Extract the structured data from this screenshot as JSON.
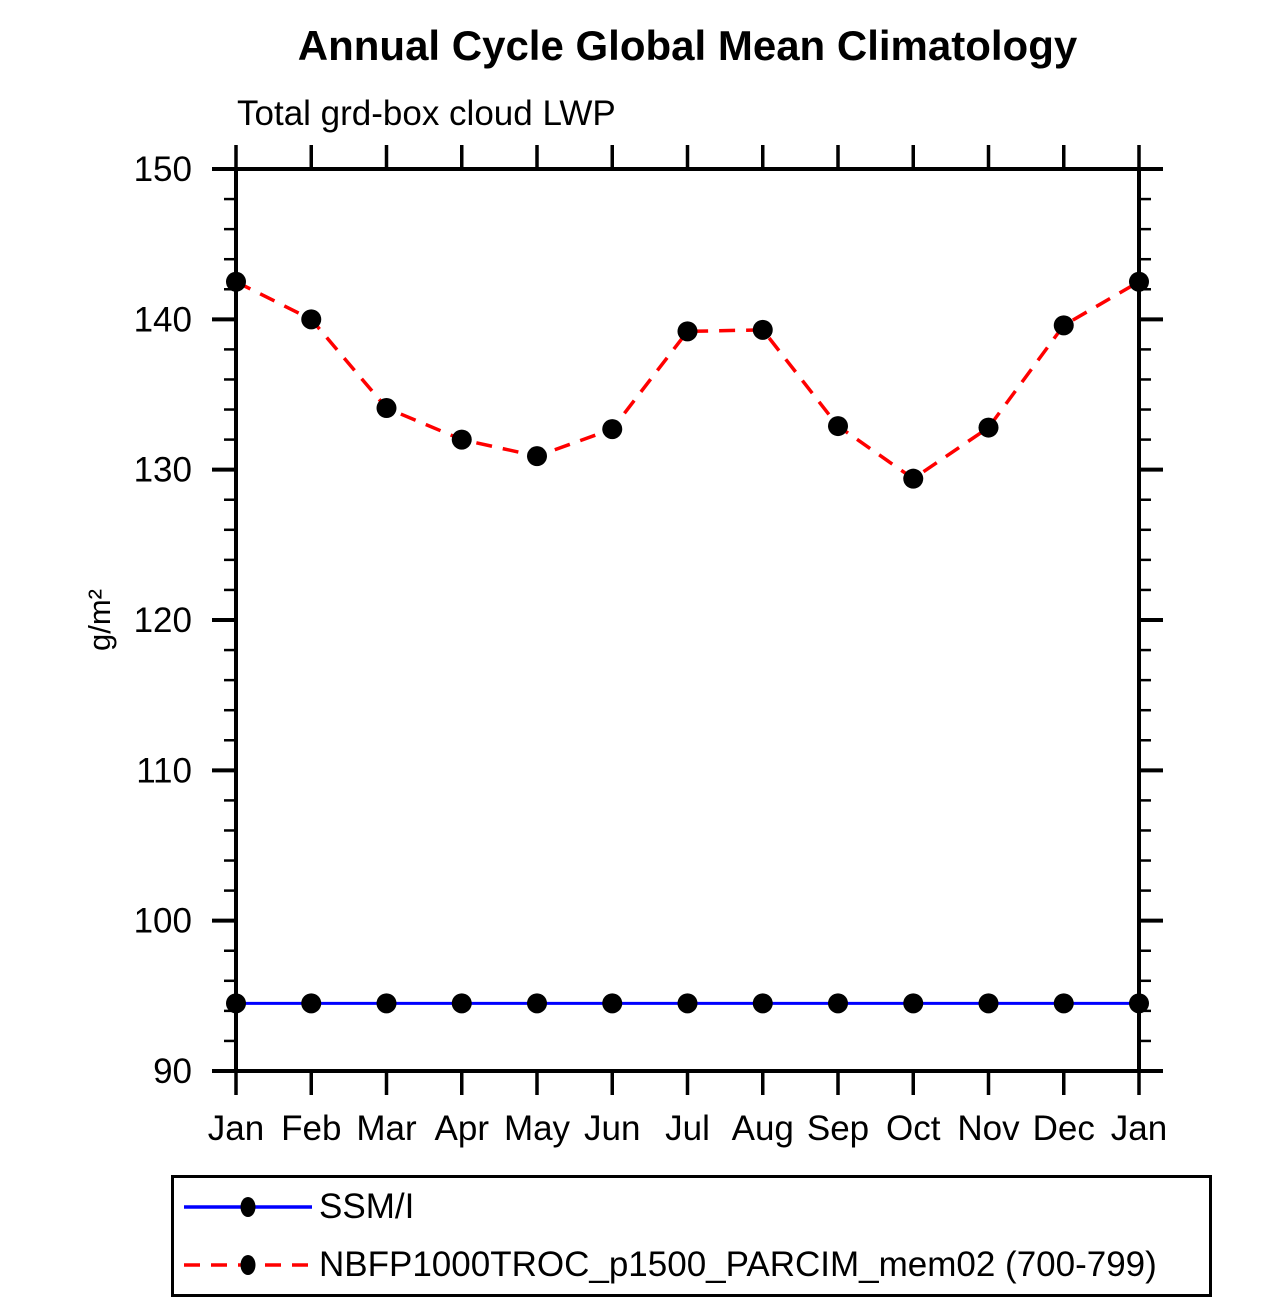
{
  "title": "Annual Cycle Global Mean Climatology",
  "subtitle": "Total grd-box cloud LWP",
  "chart_data": {
    "type": "line",
    "title": "Annual Cycle Global Mean Climatology",
    "subtitle": "Total grd-box cloud LWP",
    "xlabel": "",
    "ylabel": "g/m²",
    "ylim": [
      90,
      150
    ],
    "ytick_major_step": 10,
    "ytick_minor_step": 2,
    "ytick_major_labels": [
      "90",
      "100",
      "110",
      "120",
      "130",
      "140",
      "150"
    ],
    "grid": false,
    "legend_position": "bottom",
    "frame_color": "#000000",
    "categories": [
      "Jan",
      "Feb",
      "Mar",
      "Apr",
      "May",
      "Jun",
      "Jul",
      "Aug",
      "Sep",
      "Oct",
      "Nov",
      "Dec",
      "Jan"
    ],
    "series": [
      {
        "name": "SSM/I",
        "color": "#0000ff",
        "line_style": "solid",
        "marker": "filled-circle",
        "marker_color": "#000000",
        "values": [
          94.5,
          94.5,
          94.5,
          94.5,
          94.5,
          94.5,
          94.5,
          94.5,
          94.5,
          94.5,
          94.5,
          94.5,
          94.5
        ]
      },
      {
        "name": "NBFP1000TROC_p1500_PARCIM_mem02 (700-799)",
        "color": "#ff0000",
        "line_style": "dashed",
        "marker": "filled-circle",
        "marker_color": "#000000",
        "values": [
          142.5,
          140.0,
          134.1,
          132.0,
          130.9,
          132.7,
          139.2,
          139.3,
          132.9,
          129.4,
          132.8,
          139.6,
          142.5
        ]
      }
    ]
  }
}
